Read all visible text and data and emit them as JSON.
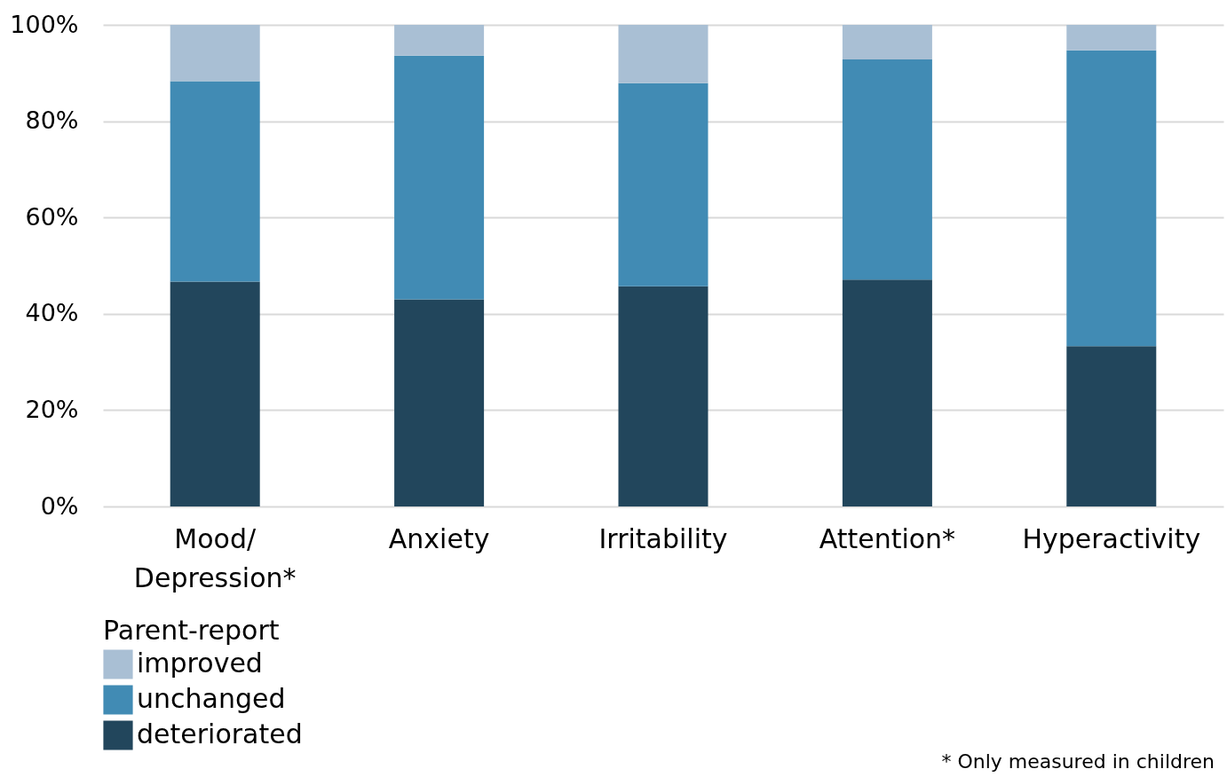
{
  "chart_data": {
    "type": "bar",
    "stacked": true,
    "categories": [
      "Mood/\nDepression*",
      "Anxiety",
      "Irritability",
      "Attention*",
      "Hyperactivity"
    ],
    "series": [
      {
        "name": "deteriorated",
        "color": "#22465c",
        "values": [
          46.7,
          43.0,
          45.7,
          47.1,
          33.3
        ]
      },
      {
        "name": "unchanged",
        "color": "#418bb4",
        "values": [
          41.6,
          50.6,
          42.2,
          45.7,
          61.4
        ]
      },
      {
        "name": "improved",
        "color": "#a9bfd4",
        "values": [
          11.7,
          6.4,
          12.1,
          7.2,
          5.3
        ]
      }
    ],
    "ylim": [
      0,
      100
    ],
    "yticks": [
      {
        "value": 0,
        "label": "0%"
      },
      {
        "value": 20,
        "label": "20%"
      },
      {
        "value": 40,
        "label": "40%"
      },
      {
        "value": 60,
        "label": "60%"
      },
      {
        "value": 80,
        "label": "80%"
      },
      {
        "value": 100,
        "label": "100%"
      }
    ],
    "grid": "y",
    "legend": "bottom",
    "legend_title": "Parent-report",
    "annotations": [
      "* Only measured in children"
    ]
  }
}
